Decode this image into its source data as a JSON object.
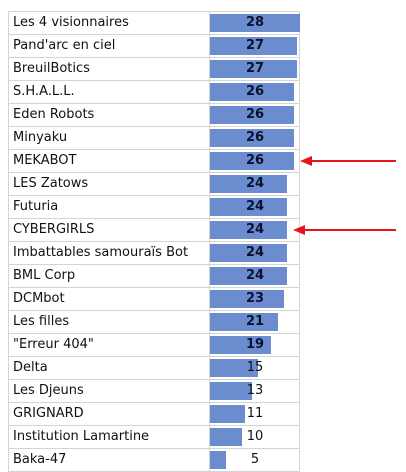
{
  "chart_data": {
    "type": "bar",
    "orientation": "horizontal",
    "categories": [
      "Les 4 visionnaires",
      "Pand'arc en ciel",
      "BreuilBotics",
      "S.H.A.L.L.",
      "Eden Robots",
      "Minyaku",
      "MEKABOT",
      "LES Zatows",
      "Futuria",
      "CYBERGIRLS",
      "Imbattables samouraïs Bot",
      "BML Corp",
      "DCMbot",
      "Les filles",
      "\"Erreur 404\"",
      "Delta",
      "Les Djeuns",
      "GRIGNARD",
      "Institution Lamartine",
      "Baka-47"
    ],
    "values": [
      28,
      27,
      27,
      26,
      26,
      26,
      26,
      24,
      24,
      24,
      24,
      24,
      23,
      21,
      19,
      15,
      13,
      11,
      10,
      5
    ],
    "xlim": [
      0,
      28
    ],
    "bar_color": "#6b8cce",
    "grid": true,
    "highlighted": [
      "MEKABOT",
      "CYBERGIRLS"
    ],
    "annotation_color": "#e8141b"
  }
}
